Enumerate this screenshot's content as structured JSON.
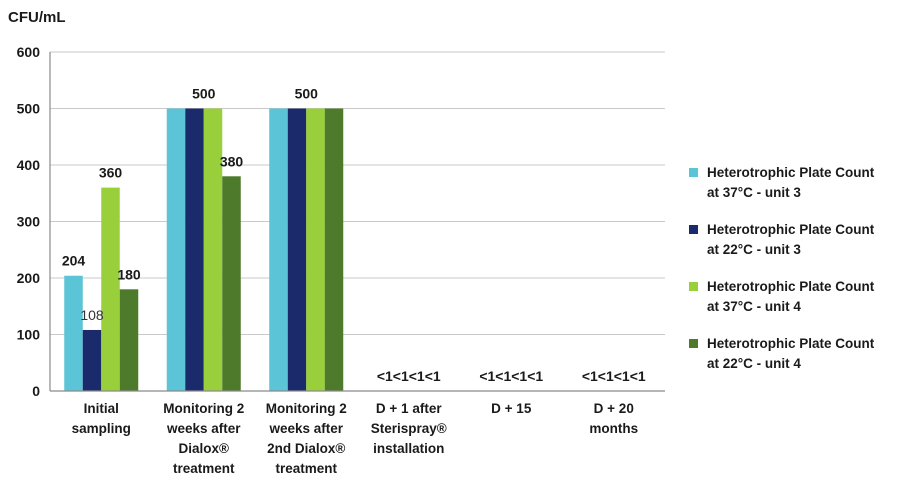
{
  "chart_data": {
    "type": "bar",
    "ylabel": "CFU/mL",
    "ylim": [
      0,
      600
    ],
    "yticks": [
      0,
      100,
      200,
      300,
      400,
      500,
      600
    ],
    "grid": true,
    "legend_position": "right",
    "categories": [
      [
        "Initial",
        "sampling"
      ],
      [
        "Monitoring 2",
        "weeks after",
        "Dialox®",
        "treatment"
      ],
      [
        "Monitoring 2",
        "weeks after",
        "2nd Dialox®",
        "treatment"
      ],
      [
        "D + 1 after",
        "Sterispray®",
        "installation"
      ],
      [
        "D + 15"
      ],
      [
        "D + 20",
        "months"
      ]
    ],
    "series": [
      {
        "name": [
          "Heterotrophic Plate Count",
          "at 37°C  -  unit 3"
        ],
        "color": "#5bc4d6",
        "values": [
          204,
          500,
          500,
          0,
          0,
          0
        ]
      },
      {
        "name": [
          "Heterotrophic Plate Count",
          "at 22°C  -  unit 3"
        ],
        "color": "#1b2a6b",
        "values": [
          108,
          500,
          500,
          0,
          0,
          0
        ]
      },
      {
        "name": [
          "Heterotrophic Plate Count",
          "at 37°C  -  unit 4"
        ],
        "color": "#98cf3a",
        "values": [
          360,
          500,
          500,
          0,
          0,
          0
        ]
      },
      {
        "name": [
          "Heterotrophic Plate Count",
          "at 22°C  -  unit 4"
        ],
        "color": "#4e7a2c",
        "values": [
          180,
          380,
          500,
          0,
          0,
          0
        ]
      }
    ],
    "data_labels": [
      {
        "text": "204",
        "category": 0,
        "series": 0,
        "value": 204
      },
      {
        "text": "108",
        "category": 0,
        "series": 1,
        "value": 108,
        "plain": true
      },
      {
        "text": "360",
        "category": 0,
        "series": 2,
        "value": 360
      },
      {
        "text": "180",
        "category": 0,
        "series": 3,
        "value": 180
      },
      {
        "text": "500",
        "category": 1,
        "series": 1.5,
        "value": 500
      },
      {
        "text": "380",
        "category": 1,
        "series": 3,
        "value": 380
      },
      {
        "text": "500",
        "category": 2,
        "series": 1.5,
        "value": 500
      },
      {
        "text": "<1<1<1<1",
        "category": 3,
        "series": 1.5,
        "value": 0
      },
      {
        "text": "<1<1<1<1",
        "category": 4,
        "series": 1.5,
        "value": 0
      },
      {
        "text": "<1<1<1<1",
        "category": 5,
        "series": 1.5,
        "value": 0
      }
    ]
  }
}
